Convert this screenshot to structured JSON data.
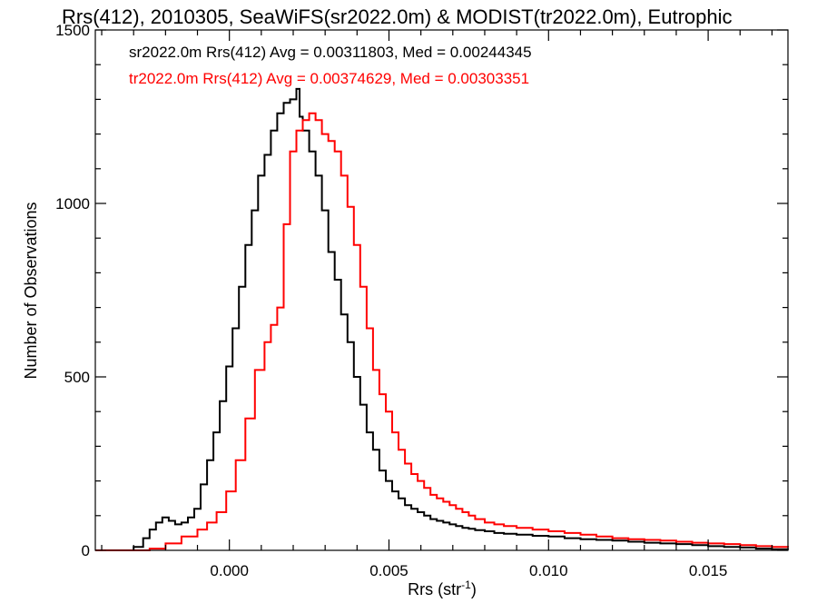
{
  "chart_data": {
    "type": "line",
    "title": "Rrs(412), 2010305, SeaWiFS(sr2022.0m) & MODIST(tr2022.0m), Eutrophic",
    "xlabel": "Rrs (str",
    "xlabel_superscript": "-1",
    "xlabel_suffix": ")",
    "ylabel": "Number of Observations",
    "xlim": [
      -0.0042,
      0.0175
    ],
    "ylim": [
      0,
      1500
    ],
    "xticks": [
      0.0,
      0.005,
      0.01,
      0.015
    ],
    "xtick_labels": [
      "0.000",
      "0.005",
      "0.010",
      "0.015"
    ],
    "yticks": [
      0,
      500,
      1000,
      1500
    ],
    "ytick_labels": [
      "0",
      "500",
      "1000",
      "1500"
    ],
    "grid": false,
    "step": "histogram",
    "series": [
      {
        "name": "sr2022.0m Rrs(412) Avg = 0.00311803, Med = 0.00244345",
        "color": "#000000",
        "x": [
          -0.0042,
          -0.0035,
          -0.003,
          -0.0027,
          -0.0025,
          -0.0023,
          -0.0021,
          -0.0019,
          -0.0017,
          -0.0015,
          -0.0013,
          -0.0011,
          -0.0009,
          -0.0007,
          -0.0005,
          -0.0003,
          -0.0001,
          0.0001,
          0.0003,
          0.0005,
          0.0007,
          0.0009,
          0.0011,
          0.0013,
          0.0015,
          0.0017,
          0.0019,
          0.0021,
          0.0022,
          0.0023,
          0.0025,
          0.0027,
          0.0029,
          0.0031,
          0.0033,
          0.0035,
          0.0037,
          0.0039,
          0.0041,
          0.0043,
          0.0045,
          0.0047,
          0.0049,
          0.0051,
          0.0053,
          0.0055,
          0.0057,
          0.0059,
          0.0061,
          0.0063,
          0.0065,
          0.0067,
          0.0069,
          0.0071,
          0.0073,
          0.0075,
          0.0077,
          0.008,
          0.0083,
          0.0086,
          0.009,
          0.0095,
          0.01,
          0.0105,
          0.011,
          0.0115,
          0.012,
          0.0125,
          0.013,
          0.0135,
          0.014,
          0.0145,
          0.015,
          0.0155,
          0.016,
          0.0165,
          0.017,
          0.0175
        ],
        "y": [
          0,
          0,
          10,
          35,
          60,
          80,
          95,
          85,
          75,
          80,
          95,
          120,
          190,
          260,
          340,
          430,
          530,
          640,
          760,
          880,
          980,
          1080,
          1140,
          1210,
          1260,
          1290,
          1300,
          1330,
          1250,
          1210,
          1150,
          1080,
          980,
          860,
          780,
          680,
          600,
          500,
          420,
          340,
          290,
          230,
          200,
          170,
          150,
          130,
          120,
          110,
          100,
          90,
          85,
          80,
          75,
          70,
          65,
          62,
          58,
          55,
          50,
          48,
          45,
          42,
          40,
          35,
          32,
          30,
          28,
          25,
          22,
          20,
          18,
          15,
          12,
          10,
          8,
          5,
          3,
          2
        ]
      },
      {
        "name": "tr2022.0m Rrs(412) Avg = 0.00374629, Med = 0.00303351",
        "color": "#ff0000",
        "x": [
          -0.0042,
          -0.0035,
          -0.0025,
          -0.002,
          -0.0015,
          -0.001,
          -0.0007,
          -0.0004,
          -0.0001,
          0.0002,
          0.0005,
          0.0008,
          0.0011,
          0.0013,
          0.0015,
          0.0017,
          0.0019,
          0.0021,
          0.0023,
          0.0025,
          0.0027,
          0.0029,
          0.0031,
          0.0033,
          0.0035,
          0.0037,
          0.0039,
          0.0041,
          0.0043,
          0.0045,
          0.0047,
          0.0049,
          0.0051,
          0.0053,
          0.0055,
          0.0057,
          0.0059,
          0.0061,
          0.0063,
          0.0065,
          0.0067,
          0.0069,
          0.0071,
          0.0073,
          0.0075,
          0.0077,
          0.008,
          0.0083,
          0.0086,
          0.009,
          0.0095,
          0.01,
          0.0105,
          0.011,
          0.0115,
          0.012,
          0.0125,
          0.013,
          0.0135,
          0.014,
          0.0145,
          0.015,
          0.0155,
          0.016,
          0.0165,
          0.017,
          0.0175
        ],
        "y": [
          0,
          0,
          5,
          20,
          40,
          60,
          80,
          110,
          170,
          260,
          380,
          520,
          600,
          650,
          700,
          940,
          1150,
          1210,
          1240,
          1260,
          1240,
          1200,
          1180,
          1150,
          1080,
          990,
          880,
          760,
          640,
          520,
          450,
          400,
          340,
          290,
          250,
          220,
          200,
          180,
          160,
          150,
          140,
          130,
          120,
          110,
          100,
          90,
          80,
          75,
          70,
          65,
          60,
          55,
          50,
          45,
          40,
          35,
          32,
          30,
          28,
          25,
          22,
          20,
          18,
          15,
          12,
          10,
          8
        ]
      }
    ],
    "legend_position": "top-left"
  }
}
